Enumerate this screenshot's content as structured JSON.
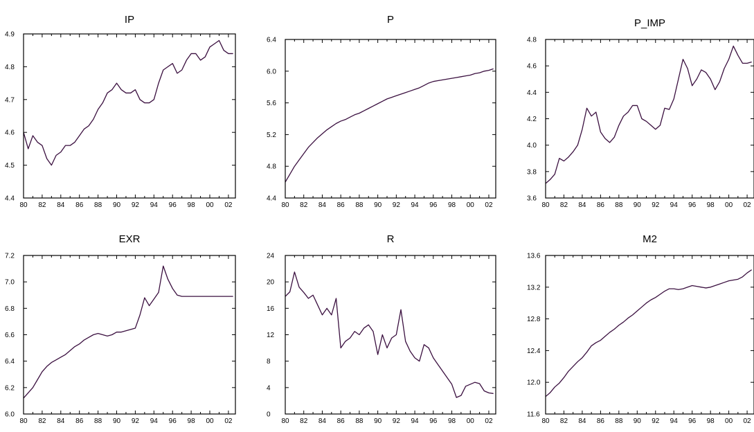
{
  "chart_data": [
    {
      "type": "line",
      "title": "IP",
      "ylim": [
        4.4,
        4.9
      ],
      "yticks": [
        "4.4",
        "4.5",
        "4.6",
        "4.7",
        "4.8",
        "4.9"
      ],
      "xticks": [
        "80",
        "82",
        "84",
        "86",
        "88",
        "90",
        "92",
        "94",
        "96",
        "98",
        "00",
        "02"
      ],
      "line_color": "#3a0f3f",
      "x": [
        1980.0,
        1980.5,
        1981.0,
        1981.5,
        1982.0,
        1982.5,
        1983.0,
        1983.5,
        1984.0,
        1984.5,
        1985.0,
        1985.5,
        1986.0,
        1986.5,
        1987.0,
        1987.5,
        1988.0,
        1988.5,
        1989.0,
        1989.5,
        1990.0,
        1990.5,
        1991.0,
        1991.5,
        1992.0,
        1992.5,
        1993.0,
        1993.5,
        1994.0,
        1994.5,
        1995.0,
        1995.5,
        1996.0,
        1996.5,
        1997.0,
        1997.5,
        1998.0,
        1998.5,
        1999.0,
        1999.5,
        2000.0,
        2000.5,
        2001.0,
        2001.5,
        2002.0,
        2002.5
      ],
      "y": [
        4.6,
        4.55,
        4.59,
        4.57,
        4.56,
        4.52,
        4.5,
        4.53,
        4.54,
        4.56,
        4.56,
        4.57,
        4.59,
        4.61,
        4.62,
        4.64,
        4.67,
        4.69,
        4.72,
        4.73,
        4.75,
        4.73,
        4.72,
        4.72,
        4.73,
        4.7,
        4.69,
        4.69,
        4.7,
        4.75,
        4.79,
        4.8,
        4.81,
        4.78,
        4.79,
        4.82,
        4.84,
        4.84,
        4.82,
        4.83,
        4.86,
        4.87,
        4.88,
        4.85,
        4.84,
        4.84
      ]
    },
    {
      "type": "line",
      "title": "P",
      "ylim": [
        4.4,
        6.4
      ],
      "yticks": [
        "4.4",
        "4.8",
        "5.2",
        "5.6",
        "6.0",
        "6.4"
      ],
      "xticks": [
        "80",
        "82",
        "84",
        "86",
        "88",
        "90",
        "92",
        "94",
        "96",
        "98",
        "00",
        "02"
      ],
      "line_color": "#3a0f3f",
      "x": [
        1980.0,
        1980.5,
        1981.0,
        1981.5,
        1982.0,
        1982.5,
        1983.0,
        1983.5,
        1984.0,
        1984.5,
        1985.0,
        1985.5,
        1986.0,
        1986.5,
        1987.0,
        1987.5,
        1988.0,
        1988.5,
        1989.0,
        1989.5,
        1990.0,
        1990.5,
        1991.0,
        1991.5,
        1992.0,
        1992.5,
        1993.0,
        1993.5,
        1994.0,
        1994.5,
        1995.0,
        1995.5,
        1996.0,
        1996.5,
        1997.0,
        1997.5,
        1998.0,
        1998.5,
        1999.0,
        1999.5,
        2000.0,
        2000.5,
        2001.0,
        2001.5,
        2002.0,
        2002.5
      ],
      "y": [
        4.6,
        4.7,
        4.8,
        4.88,
        4.96,
        5.04,
        5.1,
        5.16,
        5.21,
        5.26,
        5.3,
        5.34,
        5.37,
        5.39,
        5.42,
        5.45,
        5.47,
        5.5,
        5.53,
        5.56,
        5.59,
        5.62,
        5.65,
        5.67,
        5.69,
        5.71,
        5.73,
        5.75,
        5.77,
        5.79,
        5.82,
        5.85,
        5.87,
        5.88,
        5.89,
        5.9,
        5.91,
        5.92,
        5.93,
        5.94,
        5.95,
        5.97,
        5.98,
        6.0,
        6.01,
        6.03
      ]
    },
    {
      "type": "line",
      "title": "P_IMP",
      "ylim": [
        3.6,
        4.8
      ],
      "yticks": [
        "3.6",
        "3.8",
        "4.0",
        "4.2",
        "4.4",
        "4.6",
        "4.8"
      ],
      "xticks": [
        "80",
        "82",
        "84",
        "86",
        "88",
        "90",
        "92",
        "94",
        "96",
        "98",
        "00",
        "02"
      ],
      "line_color": "#3a0f3f",
      "x": [
        1980.0,
        1980.5,
        1981.0,
        1981.5,
        1982.0,
        1982.5,
        1983.0,
        1983.5,
        1984.0,
        1984.5,
        1985.0,
        1985.5,
        1986.0,
        1986.5,
        1987.0,
        1987.5,
        1988.0,
        1988.5,
        1989.0,
        1989.5,
        1990.0,
        1990.5,
        1991.0,
        1991.5,
        1992.0,
        1992.5,
        1993.0,
        1993.5,
        1994.0,
        1994.5,
        1995.0,
        1995.5,
        1996.0,
        1996.5,
        1997.0,
        1997.5,
        1998.0,
        1998.5,
        1999.0,
        1999.5,
        2000.0,
        2000.5,
        2001.0,
        2001.5,
        2002.0,
        2002.5
      ],
      "y": [
        3.71,
        3.74,
        3.78,
        3.9,
        3.88,
        3.91,
        3.95,
        4.0,
        4.12,
        4.28,
        4.22,
        4.25,
        4.1,
        4.05,
        4.02,
        4.06,
        4.15,
        4.22,
        4.25,
        4.3,
        4.3,
        4.2,
        4.18,
        4.15,
        4.12,
        4.15,
        4.28,
        4.27,
        4.35,
        4.5,
        4.65,
        4.58,
        4.45,
        4.5,
        4.57,
        4.55,
        4.5,
        4.42,
        4.48,
        4.58,
        4.65,
        4.75,
        4.68,
        4.62,
        4.62,
        4.63
      ]
    },
    {
      "type": "line",
      "title": "EXR",
      "ylim": [
        6.0,
        7.2
      ],
      "yticks": [
        "6.0",
        "6.2",
        "6.4",
        "6.6",
        "6.8",
        "7.0",
        "7.2"
      ],
      "xticks": [
        "80",
        "82",
        "84",
        "86",
        "88",
        "90",
        "92",
        "94",
        "96",
        "98",
        "00",
        "02"
      ],
      "line_color": "#3a0f3f",
      "x": [
        1980.0,
        1980.5,
        1981.0,
        1981.5,
        1982.0,
        1982.5,
        1983.0,
        1983.5,
        1984.0,
        1984.5,
        1985.0,
        1985.5,
        1986.0,
        1986.5,
        1987.0,
        1987.5,
        1988.0,
        1988.5,
        1989.0,
        1989.5,
        1990.0,
        1990.5,
        1991.0,
        1991.5,
        1992.0,
        1992.5,
        1993.0,
        1993.5,
        1994.0,
        1994.5,
        1995.0,
        1995.5,
        1996.0,
        1996.5,
        1997.0,
        1997.5,
        1998.0,
        1998.5,
        1999.0,
        1999.5,
        2000.0,
        2000.5,
        2001.0,
        2001.5,
        2002.0,
        2002.5
      ],
      "y": [
        6.12,
        6.16,
        6.2,
        6.26,
        6.32,
        6.36,
        6.39,
        6.41,
        6.43,
        6.45,
        6.48,
        6.51,
        6.53,
        6.56,
        6.58,
        6.6,
        6.61,
        6.6,
        6.59,
        6.6,
        6.62,
        6.62,
        6.63,
        6.64,
        6.65,
        6.75,
        6.88,
        6.82,
        6.87,
        6.92,
        7.12,
        7.02,
        6.95,
        6.9,
        6.89,
        6.89,
        6.89,
        6.89,
        6.89,
        6.89,
        6.89,
        6.89,
        6.89,
        6.89,
        6.89,
        6.89
      ]
    },
    {
      "type": "line",
      "title": "R",
      "ylim": [
        0,
        24
      ],
      "yticks": [
        "0",
        "4",
        "8",
        "12",
        "16",
        "20",
        "24"
      ],
      "xticks": [
        "80",
        "82",
        "84",
        "86",
        "88",
        "90",
        "92",
        "94",
        "96",
        "98",
        "00",
        "02"
      ],
      "line_color": "#3a0f3f",
      "x": [
        1980.0,
        1980.5,
        1981.0,
        1981.5,
        1982.0,
        1982.5,
        1983.0,
        1983.5,
        1984.0,
        1984.5,
        1985.0,
        1985.5,
        1986.0,
        1986.5,
        1987.0,
        1987.5,
        1988.0,
        1988.5,
        1989.0,
        1989.5,
        1990.0,
        1990.5,
        1991.0,
        1991.5,
        1992.0,
        1992.5,
        1993.0,
        1993.5,
        1994.0,
        1994.5,
        1995.0,
        1995.5,
        1996.0,
        1996.5,
        1997.0,
        1997.5,
        1998.0,
        1998.5,
        1999.0,
        1999.5,
        2000.0,
        2000.5,
        2001.0,
        2001.5,
        2002.0,
        2002.5
      ],
      "y": [
        17.8,
        18.5,
        21.5,
        19.2,
        18.4,
        17.5,
        18.0,
        16.5,
        15.0,
        16.0,
        15.0,
        17.5,
        10.0,
        11.0,
        11.5,
        12.5,
        12.0,
        13.0,
        13.5,
        12.5,
        9.0,
        12.0,
        10.0,
        11.5,
        12.0,
        15.8,
        11.0,
        9.5,
        8.5,
        8.0,
        10.5,
        10.0,
        8.5,
        7.5,
        6.5,
        5.5,
        4.5,
        2.5,
        2.8,
        4.2,
        4.5,
        4.8,
        4.6,
        3.5,
        3.2,
        3.1
      ]
    },
    {
      "type": "line",
      "title": "M2",
      "ylim": [
        11.6,
        13.6
      ],
      "yticks": [
        "11.6",
        "12.0",
        "12.4",
        "12.8",
        "13.2",
        "13.6"
      ],
      "xticks": [
        "80",
        "82",
        "84",
        "86",
        "88",
        "90",
        "92",
        "94",
        "96",
        "98",
        "00",
        "02"
      ],
      "line_color": "#3a0f3f",
      "x": [
        1980.0,
        1980.5,
        1981.0,
        1981.5,
        1982.0,
        1982.5,
        1983.0,
        1983.5,
        1984.0,
        1984.5,
        1985.0,
        1985.5,
        1986.0,
        1986.5,
        1987.0,
        1987.5,
        1988.0,
        1988.5,
        1989.0,
        1989.5,
        1990.0,
        1990.5,
        1991.0,
        1991.5,
        1992.0,
        1992.5,
        1993.0,
        1993.5,
        1994.0,
        1994.5,
        1995.0,
        1995.5,
        1996.0,
        1996.5,
        1997.0,
        1997.5,
        1998.0,
        1998.5,
        1999.0,
        1999.5,
        2000.0,
        2000.5,
        2001.0,
        2001.5,
        2002.0,
        2002.5
      ],
      "y": [
        11.82,
        11.87,
        11.94,
        11.99,
        12.06,
        12.14,
        12.2,
        12.26,
        12.31,
        12.38,
        12.46,
        12.5,
        12.53,
        12.58,
        12.63,
        12.67,
        12.72,
        12.76,
        12.81,
        12.85,
        12.9,
        12.95,
        13.0,
        13.04,
        13.07,
        13.11,
        13.15,
        13.18,
        13.18,
        13.17,
        13.18,
        13.2,
        13.22,
        13.21,
        13.2,
        13.19,
        13.2,
        13.22,
        13.24,
        13.26,
        13.28,
        13.29,
        13.3,
        13.33,
        13.38,
        13.42
      ]
    }
  ]
}
